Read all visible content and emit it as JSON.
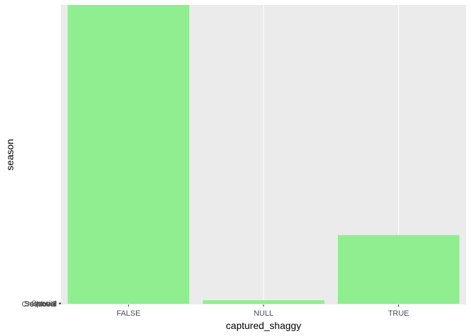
{
  "chart_data": {
    "type": "bar",
    "xlabel": "captured_shaggy",
    "ylabel": "season",
    "categories": [
      "FALSE",
      "NULL",
      "TRUE"
    ],
    "values": [
      100,
      1.2,
      23
    ],
    "ylim": [
      0,
      100
    ],
    "y_tick_labels": [
      "Crossover",
      "Movie",
      "Season 1",
      "Season 2",
      "Special"
    ],
    "grid": true,
    "bar_color": "#90EE90",
    "panel_background": "#EBEBEB",
    "gridline_color": "#FFFFFF"
  }
}
